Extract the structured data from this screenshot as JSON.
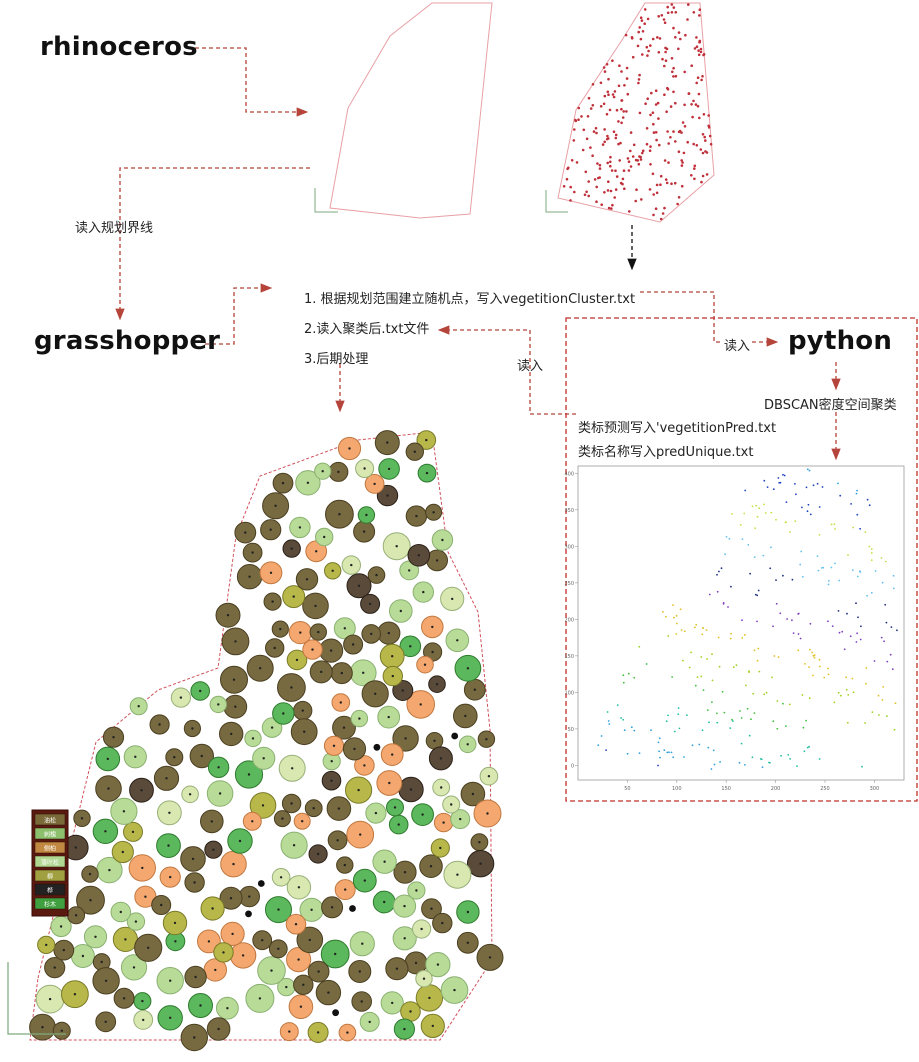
{
  "labels": {
    "rhino": "rhinoceros",
    "grasshopper": "grasshopper",
    "python": "python",
    "read_boundary": "读入规划界线",
    "step1": "1. 根据规划范围建立随机点，写入vegetitionCluster.txt",
    "step2": "2.读入聚类后.txt文件",
    "step3": "3.后期处理",
    "read_in_left": "读入",
    "read_in_right": "读入",
    "dbscan": "DBSCAN密度空间聚类",
    "pred_write": "类标预测写入'vegetitionPred.txt",
    "unique_write": "类标名称写入predUnique.txt"
  },
  "legend": {
    "items": [
      {
        "label": "油松",
        "color": "#7a6a3a"
      },
      {
        "label": "刺槐",
        "color": "#8cc06c"
      },
      {
        "label": "侧柏",
        "color": "#c08840"
      },
      {
        "label": "落叶松",
        "color": "#b0d890"
      },
      {
        "label": "柳",
        "color": "#a0a040"
      },
      {
        "label": "桦",
        "color": "#222222"
      },
      {
        "label": "杉木",
        "color": "#40a040"
      }
    ]
  },
  "chart_data": {
    "type": "scatter",
    "title": "",
    "xlabel": "",
    "ylabel": "",
    "xlim": [
      0,
      330
    ],
    "ylim": [
      -20,
      410
    ],
    "xticks": [
      "50",
      "100",
      "150",
      "200",
      "250",
      "300"
    ],
    "yticks": [
      "0",
      "50",
      "100",
      "150",
      "200",
      "250",
      "300",
      "350",
      "400"
    ],
    "grid": false
  }
}
